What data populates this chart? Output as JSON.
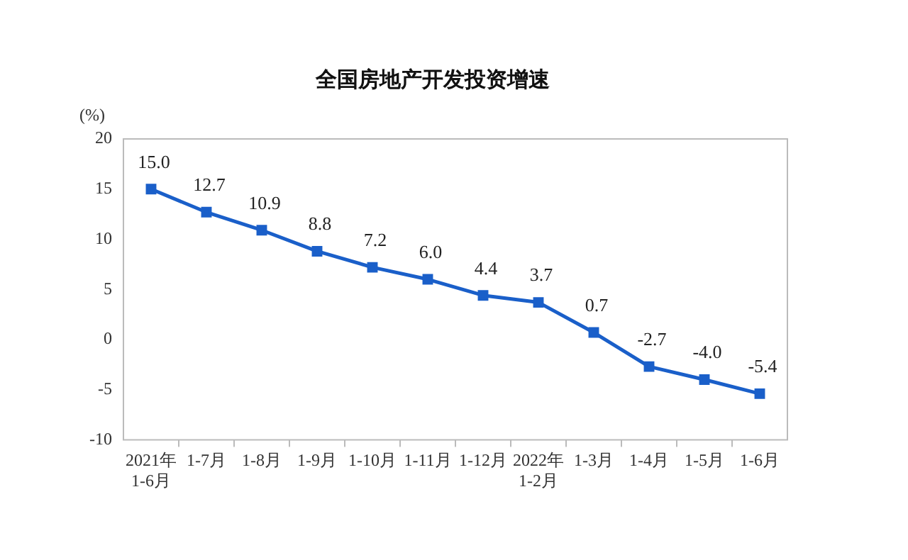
{
  "chart_data": {
    "type": "line",
    "title": "全国房地产开发投资增速",
    "ylabel": "(%)",
    "categories": [
      "2021年\n1-6月",
      "1-7月",
      "1-8月",
      "1-9月",
      "1-10月",
      "1-11月",
      "1-12月",
      "2022年\n1-2月",
      "1-3月",
      "1-4月",
      "1-5月",
      "1-6月"
    ],
    "series": [
      {
        "color": "#1a5fc9",
        "values": [
          15.0,
          12.7,
          10.9,
          8.8,
          7.2,
          6.0,
          4.4,
          3.7,
          0.7,
          -2.7,
          -4.0,
          -5.4
        ],
        "value_labels": [
          "15.0",
          "12.7",
          "10.9",
          "8.8",
          "7.2",
          "6.0",
          "4.4",
          "3.7",
          "0.7",
          "-2.7",
          "-4.0",
          "-5.4"
        ]
      }
    ],
    "ylim": [
      -10,
      20
    ],
    "yticks": [
      -10,
      -5,
      0,
      5,
      10,
      15,
      20
    ],
    "grid": false,
    "legend": false,
    "marker": "square",
    "line_style": "solid"
  }
}
